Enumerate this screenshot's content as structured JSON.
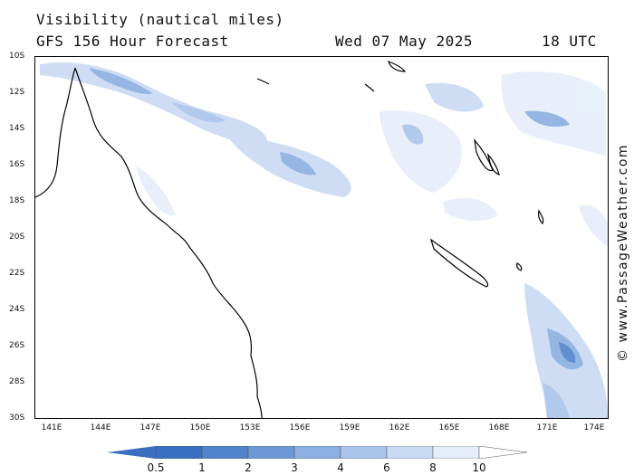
{
  "header": {
    "title": "Visibility (nautical miles)",
    "subtitle": "GFS 156 Hour Forecast",
    "datetime": "Wed 07 May 2025",
    "utc": "18 UTC"
  },
  "credit": "© www.PassageWeather.com",
  "axes": {
    "lat_labels": [
      "10S",
      "12S",
      "14S",
      "16S",
      "18S",
      "20S",
      "22S",
      "24S",
      "26S",
      "28S",
      "30S"
    ],
    "lon_labels": [
      "141E",
      "144E",
      "147E",
      "150E",
      "153E",
      "156E",
      "159E",
      "162E",
      "165E",
      "168E",
      "171E",
      "174E"
    ]
  },
  "legend": {
    "ticks": [
      "0.5",
      "1",
      "2",
      "3",
      "4",
      "6",
      "8",
      "10"
    ],
    "colors": [
      "#3a6fbf",
      "#4f83cc",
      "#6b99d6",
      "#8aafe0",
      "#a9c5ea",
      "#c9daf3",
      "#e6eefa",
      "#ffffff"
    ]
  }
}
